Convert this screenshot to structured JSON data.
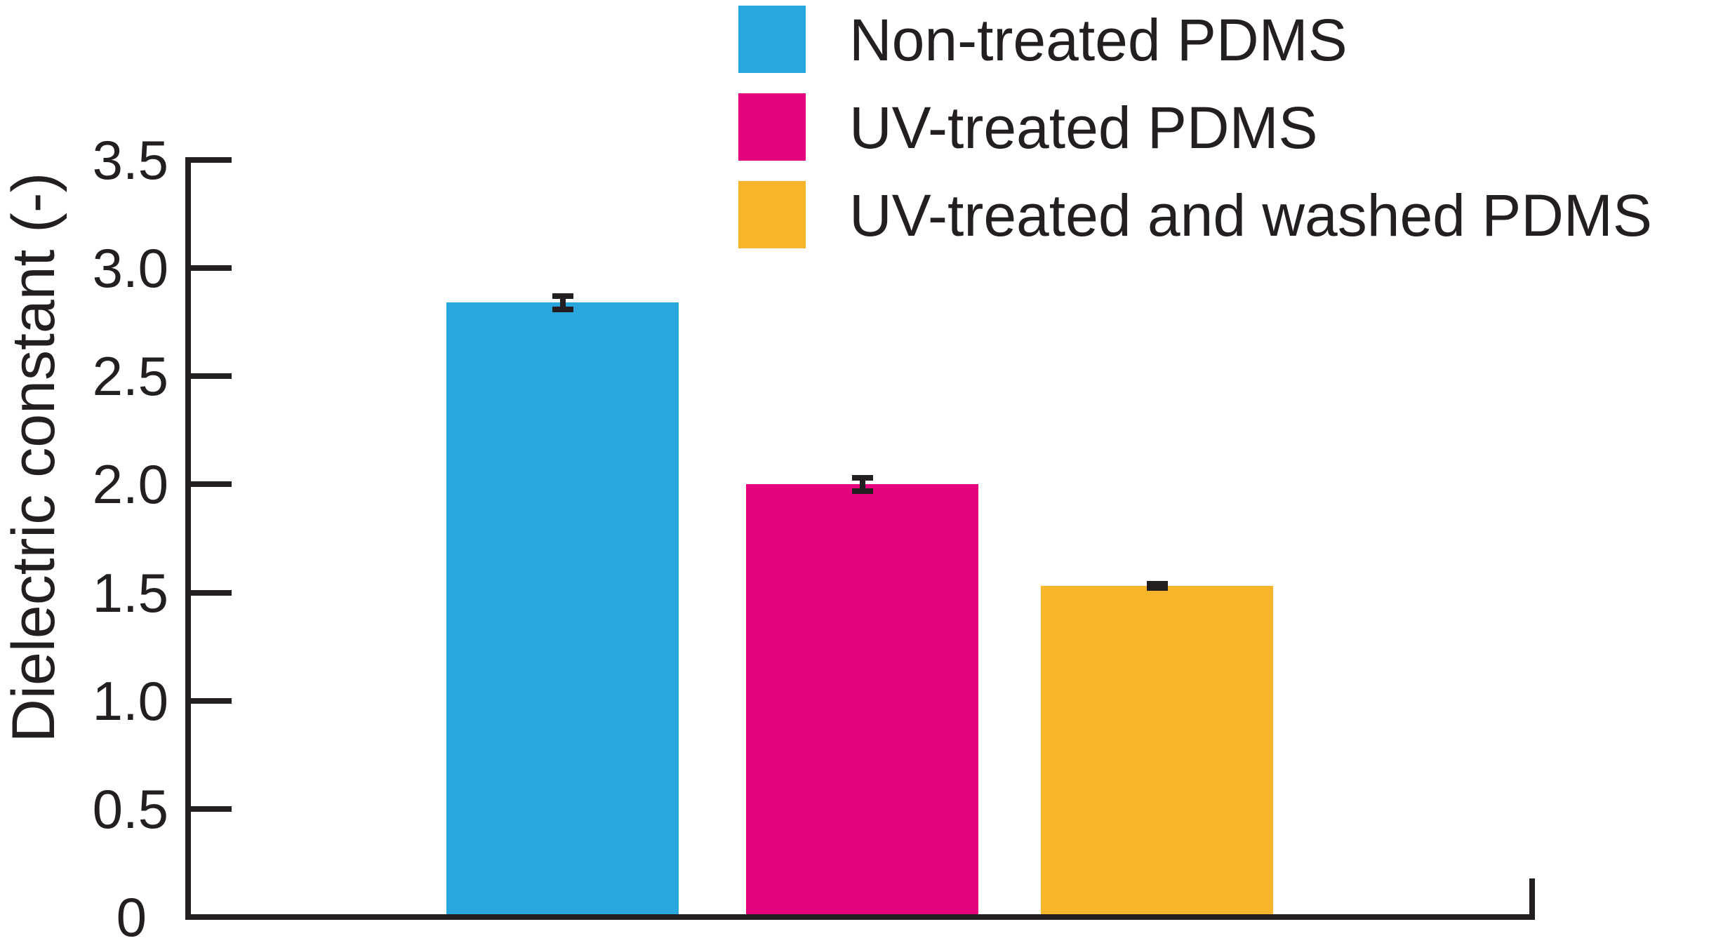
{
  "figure": {
    "background": "#ffffff",
    "text_color": "#231f20",
    "axis_color": "#231f20"
  },
  "chart_data": {
    "type": "bar",
    "ylabel": "Dielectric constant (-)",
    "xlabel": "",
    "ylim": [
      0,
      3.5
    ],
    "grid": false,
    "legend_position": "top-right",
    "ytick_values": [
      0,
      0.5,
      1.0,
      1.5,
      2.0,
      2.5,
      3.0,
      3.5
    ],
    "ytick_labels": [
      "0",
      "0.5",
      "1.0",
      "1.5",
      "2.0",
      "2.5",
      "3.0",
      "3.5"
    ],
    "categories": [
      "Non-treated PDMS",
      "UV-treated PDMS",
      "UV-treated and washed PDMS"
    ],
    "values": [
      2.84,
      2.0,
      1.53
    ],
    "errors": [
      0.03,
      0.03,
      0.01
    ],
    "colors": [
      "#2aa6de",
      "#e6047e",
      "#f7b52c"
    ],
    "legend": [
      {
        "label": "Non-treated PDMS",
        "color": "#2aa6de"
      },
      {
        "label": "UV-treated PDMS",
        "color": "#e6047e"
      },
      {
        "label": "UV-treated and washed PDMS",
        "color": "#f7b52c"
      }
    ]
  }
}
